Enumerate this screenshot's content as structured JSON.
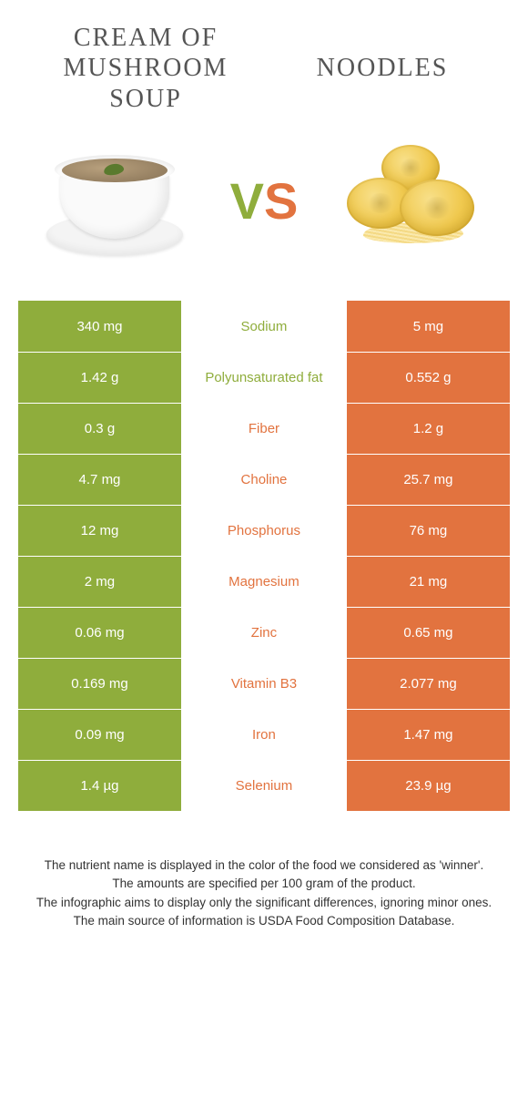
{
  "colors": {
    "left": "#8fad3c",
    "right": "#e2733f",
    "text": "#333333",
    "title": "#555555"
  },
  "titles": {
    "left": "CREAM OF\nMUSHROOM\nSOUP",
    "right": "NOODLES",
    "vs_v": "V",
    "vs_s": "S"
  },
  "rows": [
    {
      "left": "340 mg",
      "label": "Sodium",
      "right": "5 mg",
      "winner": "left"
    },
    {
      "left": "1.42 g",
      "label": "Polyunsaturated fat",
      "right": "0.552 g",
      "winner": "left"
    },
    {
      "left": "0.3 g",
      "label": "Fiber",
      "right": "1.2 g",
      "winner": "right"
    },
    {
      "left": "4.7 mg",
      "label": "Choline",
      "right": "25.7 mg",
      "winner": "right"
    },
    {
      "left": "12 mg",
      "label": "Phosphorus",
      "right": "76 mg",
      "winner": "right"
    },
    {
      "left": "2 mg",
      "label": "Magnesium",
      "right": "21 mg",
      "winner": "right"
    },
    {
      "left": "0.06 mg",
      "label": "Zinc",
      "right": "0.65 mg",
      "winner": "right"
    },
    {
      "left": "0.169 mg",
      "label": "Vitamin B3",
      "right": "2.077 mg",
      "winner": "right"
    },
    {
      "left": "0.09 mg",
      "label": "Iron",
      "right": "1.47 mg",
      "winner": "right"
    },
    {
      "left": "1.4 µg",
      "label": "Selenium",
      "right": "23.9 µg",
      "winner": "right"
    }
  ],
  "footnotes": [
    "The nutrient name is displayed in the color of the food we considered as 'winner'.",
    "The amounts are specified per 100 gram of the product.",
    "The infographic aims to display only the significant differences, ignoring minor ones.",
    "The main source of information is USDA Food Composition Database."
  ]
}
